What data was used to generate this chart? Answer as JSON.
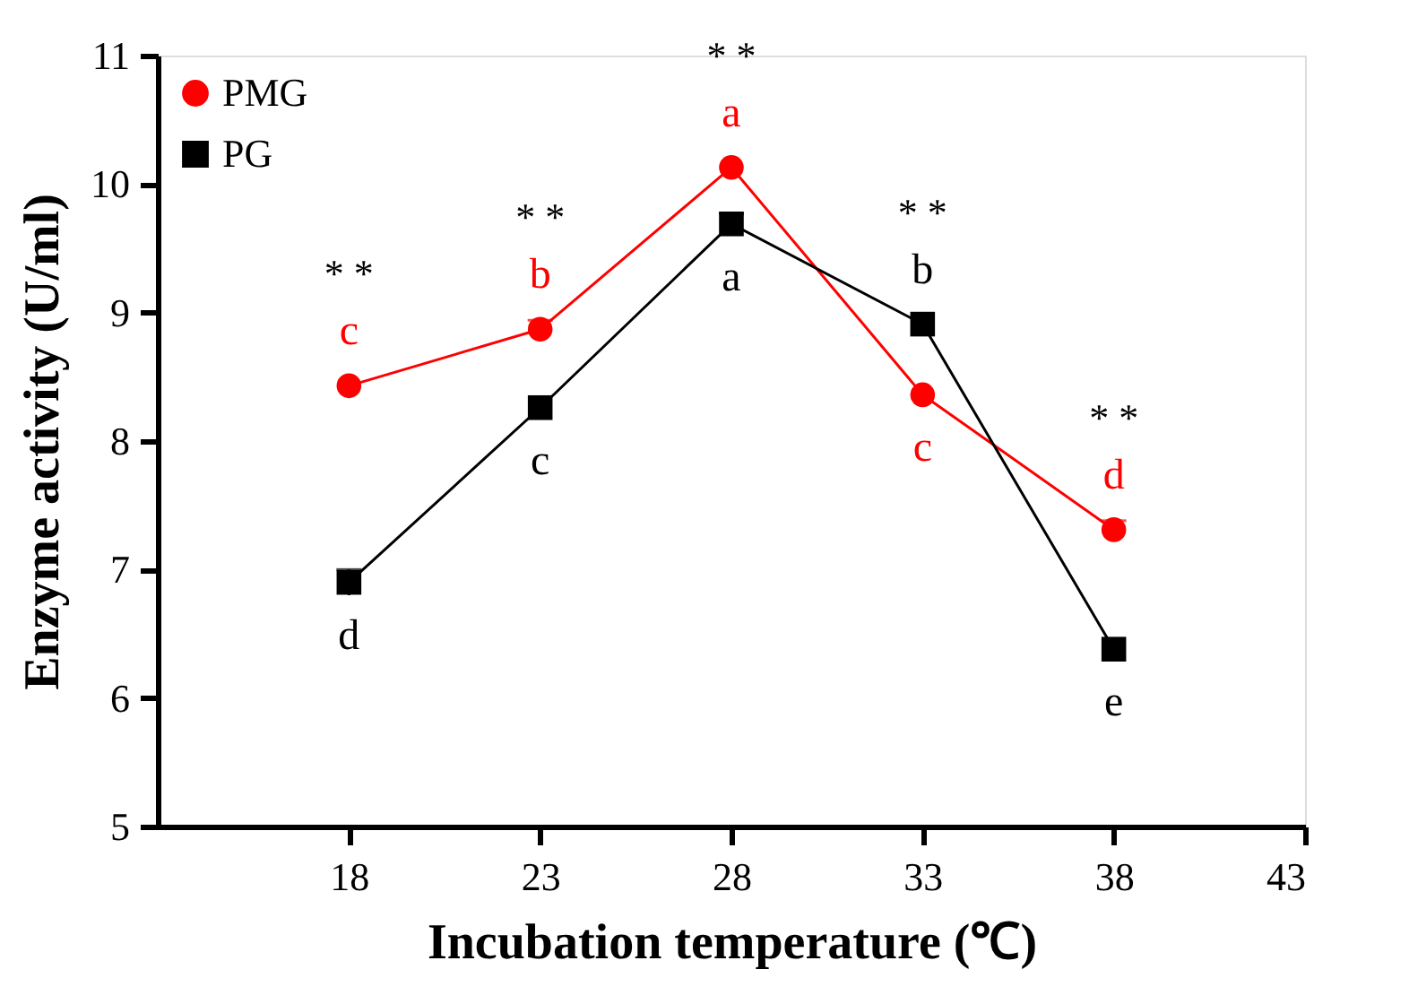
{
  "chart_data": {
    "type": "line",
    "xlabel": "Incubation temperature (℃)",
    "ylabel": "Enzyme activity (U/ml)",
    "x": [
      18,
      23,
      28,
      33,
      38
    ],
    "xlim": [
      13,
      43
    ],
    "xticks": [
      18,
      23,
      28,
      33,
      38,
      43
    ],
    "ylim": [
      5,
      11
    ],
    "yticks": [
      5,
      6,
      7,
      8,
      9,
      10,
      11
    ],
    "grid": false,
    "legend": "top left",
    "series": [
      {
        "name": "PMG",
        "color": "#ff0000",
        "marker": "circle",
        "values": [
          8.43,
          8.87,
          10.13,
          8.36,
          7.31
        ],
        "errors": [
          null,
          0.07,
          null,
          null,
          0.07
        ],
        "value_labels": [
          "c",
          "b",
          "a",
          "c",
          "d"
        ]
      },
      {
        "name": "PG",
        "color": "#000000",
        "marker": "square",
        "values": [
          6.9,
          8.26,
          9.69,
          8.91,
          6.38
        ],
        "errors": [
          0.1,
          null,
          0.08,
          null,
          null
        ],
        "value_labels": [
          "d",
          "c",
          "a",
          "b",
          "e"
        ]
      }
    ],
    "annotations": [
      "* *",
      "* *",
      "* *",
      "* *",
      "* *"
    ]
  }
}
